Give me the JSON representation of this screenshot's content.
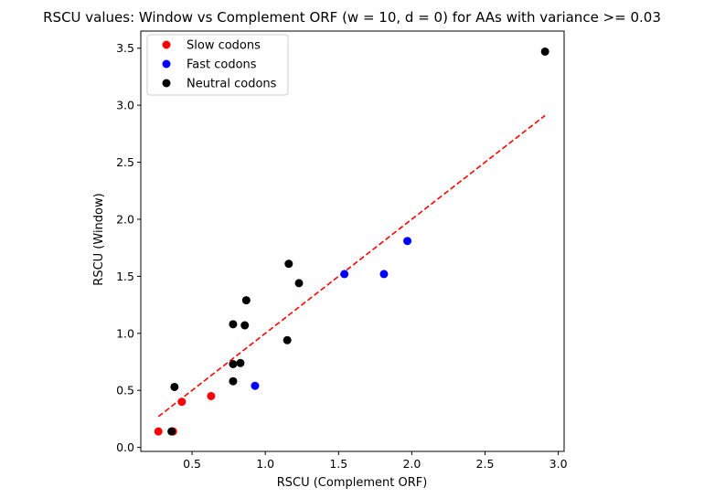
{
  "chart_data": {
    "type": "scatter",
    "title": "RSCU values: Window vs Complement ORF (w = 10, d = 0) for AAs with variance >= 0.03",
    "xlabel": "RSCU (Complement ORF)",
    "ylabel": "RSCU (Window)",
    "xlim": [
      0.15,
      3.04
    ],
    "ylim": [
      -0.035,
      3.65
    ],
    "xticks": [
      0.5,
      1.0,
      1.5,
      2.0,
      2.5,
      3.0
    ],
    "xtick_labels": [
      "0.5",
      "1.0",
      "1.5",
      "2.0",
      "2.5",
      "3.0"
    ],
    "yticks": [
      0.0,
      0.5,
      1.0,
      1.5,
      2.0,
      2.5,
      3.0,
      3.5
    ],
    "ytick_labels": [
      "0.0",
      "0.5",
      "1.0",
      "1.5",
      "2.0",
      "2.5",
      "3.0",
      "3.5"
    ],
    "grid": false,
    "legend_position": "top-left",
    "series": [
      {
        "name": "Slow codons",
        "color": "#ff0000",
        "points": [
          [
            0.27,
            0.14
          ],
          [
            0.37,
            0.14
          ],
          [
            0.43,
            0.4
          ],
          [
            0.63,
            0.45
          ]
        ]
      },
      {
        "name": "Fast codons",
        "color": "#0000ff",
        "points": [
          [
            0.93,
            0.54
          ],
          [
            1.54,
            1.52
          ],
          [
            1.81,
            1.52
          ],
          [
            1.97,
            1.81
          ]
        ]
      },
      {
        "name": "Neutral codons",
        "color": "#000000",
        "points": [
          [
            0.36,
            0.14
          ],
          [
            0.38,
            0.53
          ],
          [
            0.78,
            0.73
          ],
          [
            0.78,
            0.58
          ],
          [
            0.78,
            1.08
          ],
          [
            0.83,
            0.74
          ],
          [
            0.86,
            1.07
          ],
          [
            0.87,
            1.29
          ],
          [
            1.15,
            0.94
          ],
          [
            1.16,
            1.61
          ],
          [
            1.23,
            1.44
          ],
          [
            2.91,
            3.47
          ]
        ]
      }
    ],
    "fit_line": {
      "style": "dashed",
      "color": "#ff0000",
      "x": [
        0.27,
        2.91
      ],
      "y": [
        0.27,
        2.91
      ]
    }
  }
}
